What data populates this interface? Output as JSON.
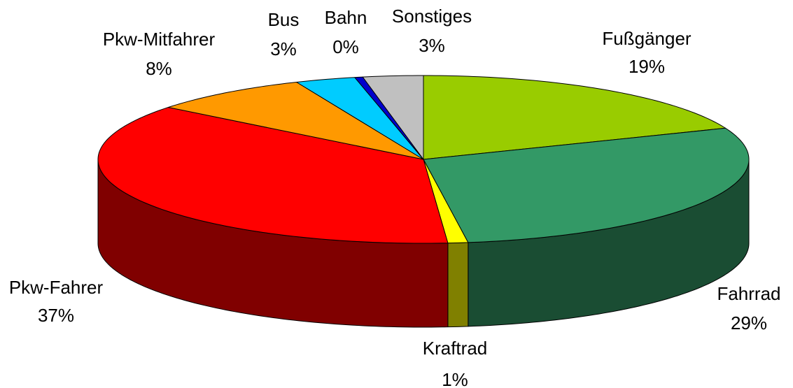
{
  "chart_data": {
    "type": "pie3d",
    "categories": [
      "Fußgänger",
      "Fahrrad",
      "Kraftrad",
      "Pkw-Fahrer",
      "Pkw-Mitfahrer",
      "Bus",
      "Bahn",
      "Sonstiges"
    ],
    "values": [
      19,
      29,
      1,
      37,
      8,
      3,
      0.4,
      3
    ],
    "value_labels": [
      "19%",
      "29%",
      "1%",
      "37%",
      "8%",
      "3%",
      "0%",
      "3%"
    ],
    "colors": [
      "#99cc00",
      "#339966",
      "#ffff00",
      "#ff0000",
      "#ff9900",
      "#00ccff",
      "#0000cc",
      "#c0c0c0"
    ]
  }
}
